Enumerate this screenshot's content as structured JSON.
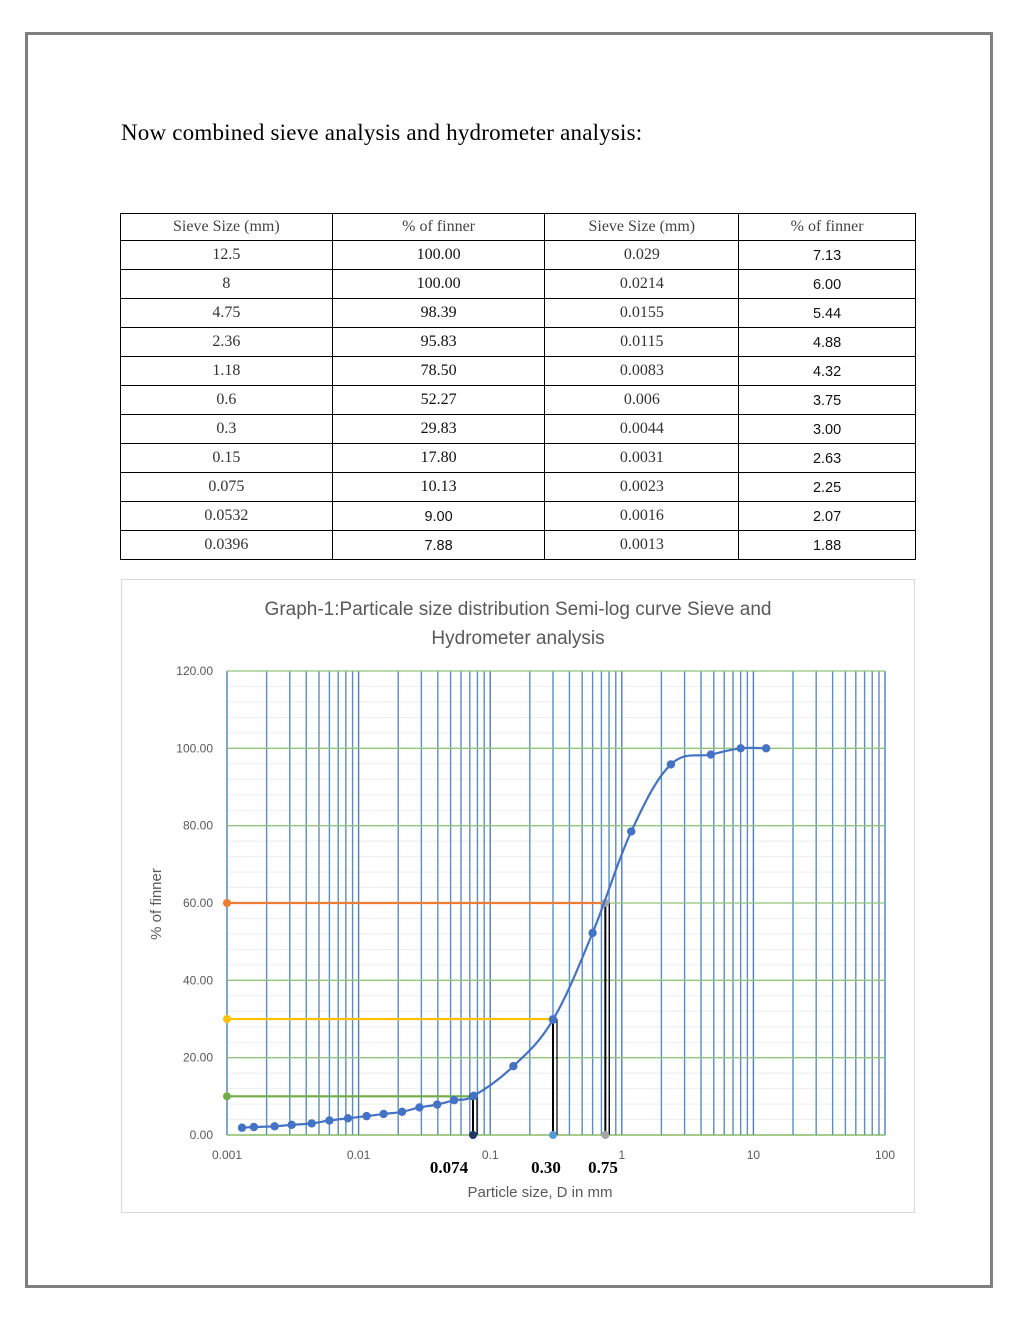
{
  "heading": "Now combined sieve analysis and hydrometer analysis:",
  "table": {
    "headers": [
      "Sieve Size (mm)",
      "% of finner",
      "Sieve Size (mm)",
      "% of finner"
    ],
    "rows": [
      [
        "12.5",
        "100.00",
        "0.029",
        "7.13"
      ],
      [
        "8",
        "100.00",
        "0.0214",
        "6.00"
      ],
      [
        "4.75",
        "98.39",
        "0.0155",
        "5.44"
      ],
      [
        "2.36",
        "95.83",
        "0.0115",
        "4.88"
      ],
      [
        "1.18",
        "78.50",
        "0.0083",
        "4.32"
      ],
      [
        "0.6",
        "52.27",
        "0.006",
        "3.75"
      ],
      [
        "0.3",
        "29.83",
        "0.0044",
        "3.00"
      ],
      [
        "0.15",
        "17.80",
        "0.0031",
        "2.63"
      ],
      [
        "0.075",
        "10.13",
        "0.0023",
        "2.25"
      ],
      [
        "0.0532",
        "9.00",
        "0.0016",
        "2.07"
      ],
      [
        "0.0396",
        "7.88",
        "0.0013",
        "1.88"
      ]
    ]
  },
  "chart_data": {
    "type": "scatter",
    "title": "Graph-1:Particale size distribution Semi-log curve Sieve and Hydrometer analysis",
    "title_lines": [
      "Graph-1:Particale size distribution Semi-log curve Sieve and",
      "Hydrometer analysis"
    ],
    "xlabel": "Particle size, D in mm",
    "ylabel": "% of finner",
    "x_scale": "log",
    "xlim": [
      0.001,
      100
    ],
    "ylim": [
      0,
      120
    ],
    "x_ticks": [
      "0.001",
      "0.01",
      "0.1",
      "1",
      "10",
      "100"
    ],
    "y_ticks": [
      "0.00",
      "20.00",
      "40.00",
      "60.00",
      "80.00",
      "100.00",
      "120.00"
    ],
    "grid": true,
    "series": [
      {
        "color": "#4472c4",
        "x": [
          0.0013,
          0.0016,
          0.0023,
          0.0031,
          0.0044,
          0.006,
          0.0083,
          0.0115,
          0.0155,
          0.0214,
          0.029,
          0.0396,
          0.0532,
          0.075,
          0.15,
          0.3,
          0.6,
          1.18,
          2.36,
          4.75,
          8,
          12.5
        ],
        "y": [
          1.88,
          2.07,
          2.25,
          2.63,
          3.0,
          3.75,
          4.32,
          4.88,
          5.44,
          6.0,
          7.13,
          7.88,
          9.0,
          10.13,
          17.8,
          29.83,
          52.27,
          78.5,
          95.83,
          98.39,
          100.0,
          100.0
        ]
      }
    ],
    "reference_lines": [
      {
        "y": 60,
        "x_end": 0.75,
        "color": "#ed7d31"
      },
      {
        "y": 30,
        "x_end": 0.3,
        "color": "#ffc000"
      },
      {
        "y": 10,
        "x_end": 0.074,
        "color": "#70ad47"
      }
    ],
    "drop_lines": [
      {
        "x": 0.074,
        "y": 10,
        "color": "#1f3864"
      },
      {
        "x": 0.3,
        "y": 30,
        "color": "#5b9bd5"
      },
      {
        "x": 0.75,
        "y": 60,
        "color": "#a5a5a5"
      }
    ],
    "annotations": [
      "0.074",
      "0.30",
      "0.75"
    ]
  }
}
